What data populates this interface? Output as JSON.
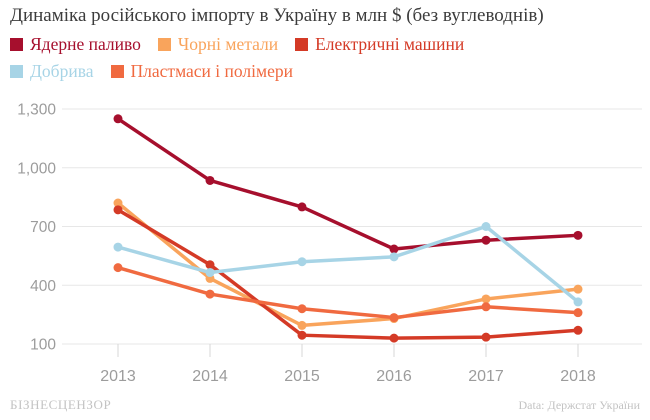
{
  "chart_data": {
    "type": "line",
    "title": "Динаміка російського імпорту в Україну в млн $ (без вуглеводнів)",
    "xlabel": "",
    "ylabel": "",
    "x_labels": [
      "2013",
      "2014",
      "2015",
      "2016",
      "2017",
      "2018"
    ],
    "ylim": [
      100,
      1300
    ],
    "grid": true,
    "legend_position": "top-left",
    "yticks": [
      {
        "value": 100,
        "label": "100"
      },
      {
        "value": 400,
        "label": "400"
      },
      {
        "value": 700,
        "label": "700"
      },
      {
        "value": 1000,
        "label": "1,000"
      },
      {
        "value": 1300,
        "label": "1,300"
      }
    ],
    "series": [
      {
        "name": "Ядерне паливо",
        "color": "#A60F2D",
        "values": [
          1250,
          935,
          800,
          585,
          630,
          655
        ]
      },
      {
        "name": "Чорні метали",
        "color": "#F9A45C",
        "values": [
          820,
          435,
          195,
          230,
          330,
          380
        ]
      },
      {
        "name": "Електричні машини",
        "color": "#D43A26",
        "values": [
          785,
          505,
          145,
          130,
          135,
          170
        ]
      },
      {
        "name": "Добрива",
        "color": "#A7D4E6",
        "values": [
          595,
          465,
          520,
          545,
          700,
          315
        ]
      },
      {
        "name": "Пластмаси і полімери",
        "color": "#F06A40",
        "values": [
          490,
          355,
          280,
          235,
          290,
          260
        ]
      }
    ]
  },
  "footer": {
    "brand": "БІЗНЕСЦЕНЗОР",
    "source": "Data: Держстат України"
  }
}
